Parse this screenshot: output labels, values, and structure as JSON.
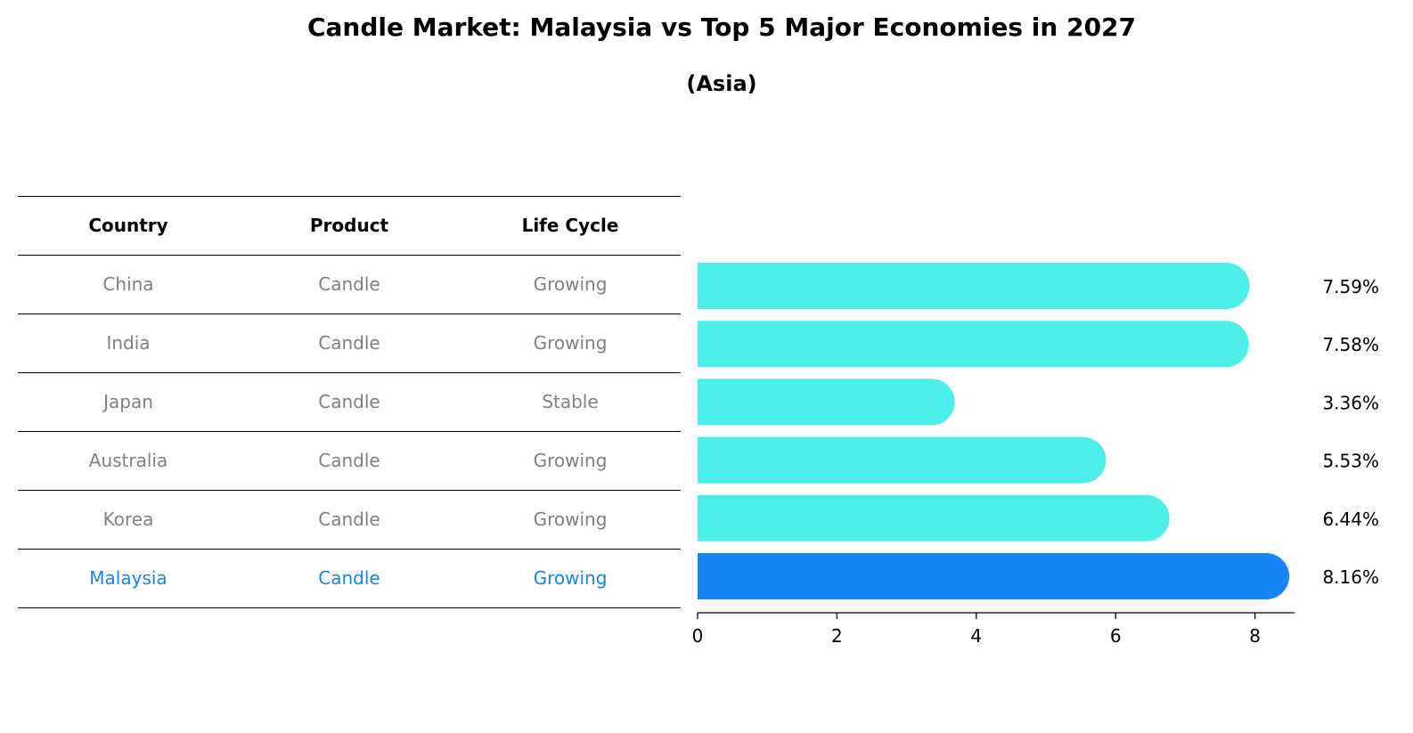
{
  "title": "Candle Market: Malaysia vs Top 5 Major Economies in 2027",
  "subtitle": "(Asia)",
  "table": {
    "headers": [
      "Country",
      "Product",
      "Life Cycle"
    ],
    "rows": [
      [
        "China",
        "Candle",
        "Growing"
      ],
      [
        "India",
        "Candle",
        "Growing"
      ],
      [
        "Japan",
        "Candle",
        "Stable"
      ],
      [
        "Australia",
        "Candle",
        "Growing"
      ],
      [
        "Korea",
        "Candle",
        "Growing"
      ],
      [
        "Malaysia",
        "Candle",
        "Growing"
      ]
    ],
    "highlight_row": 5
  },
  "colors": {
    "bar": "#4deee8",
    "highlight_bar": "#1a85f5",
    "highlight_text": "#1a85e8",
    "body_text": "#808080"
  },
  "chart_data": {
    "type": "bar",
    "orientation": "horizontal",
    "categories": [
      "China",
      "India",
      "Japan",
      "Australia",
      "Korea",
      "Malaysia"
    ],
    "values": [
      7.59,
      7.58,
      3.36,
      5.53,
      6.44,
      8.16
    ],
    "value_labels": [
      "7.59%",
      "7.58%",
      "3.36%",
      "5.53%",
      "6.44%",
      "8.16%"
    ],
    "highlight_category": "Malaysia",
    "xlim": [
      0,
      8.57
    ],
    "xticks": [
      0,
      2,
      4,
      6,
      8
    ],
    "xtick_labels": [
      "0",
      "2",
      "4",
      "6",
      "8"
    ],
    "grid": false
  }
}
